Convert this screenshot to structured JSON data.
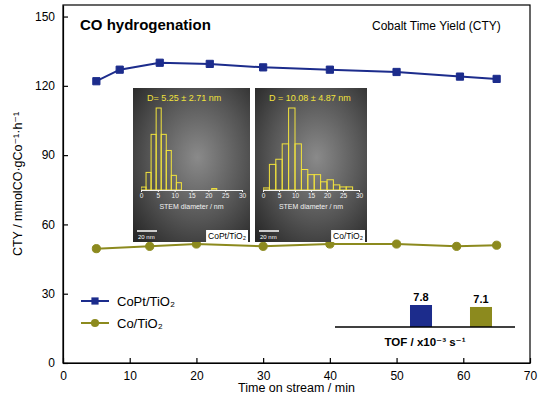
{
  "chart_data": [
    {
      "type": "line",
      "title": "CO hydrogenation",
      "subtitle": "Cobalt Time Yield (CTY)",
      "x_label": "Time on stream / min",
      "y_label": "CTY / mmolCO·gCo⁻¹·h⁻¹",
      "xlim": [
        0,
        70
      ],
      "xticks": [
        0,
        10,
        20,
        30,
        40,
        50,
        60,
        70
      ],
      "ylim": [
        0,
        155
      ],
      "yticks": [
        0,
        30,
        60,
        90,
        120,
        150
      ],
      "legend": "lower left",
      "series": [
        {
          "name": "CoPt/TiO₂",
          "color": "#1c2c8c",
          "marker": "square",
          "x": [
            5,
            8.5,
            14.5,
            22,
            30,
            40,
            50,
            59.5,
            65
          ],
          "values": [
            122,
            127,
            130,
            129.5,
            128,
            127,
            126,
            124,
            123
          ]
        },
        {
          "name": "Co/TiO₂",
          "color": "#8c8a1e",
          "marker": "circle",
          "x": [
            5,
            13,
            20,
            30,
            40,
            50,
            59,
            65
          ],
          "values": [
            49.5,
            50.5,
            51.5,
            50.5,
            51.5,
            51.5,
            50.5,
            51
          ]
        }
      ]
    },
    {
      "type": "histogram",
      "title": "D= 5.25 ± 2.71 nm",
      "x_label": "STEM diameter / nm",
      "annotations": [
        "CoPt/TiO₂",
        "20 nm"
      ],
      "color": "#f2e33c",
      "xlim": [
        0,
        30
      ],
      "xticks": [
        0,
        5,
        10,
        15,
        20,
        25,
        30
      ],
      "bins": [
        0,
        1.5,
        3,
        4.5,
        6,
        7.5,
        9,
        10.5,
        12,
        13.5,
        15,
        16.5,
        18,
        19.5,
        21,
        22.5
      ],
      "values": [
        2,
        12,
        38,
        56,
        38,
        27,
        10,
        5,
        0,
        0,
        0,
        0,
        0,
        0,
        1
      ]
    },
    {
      "type": "histogram",
      "title": "D = 10.08 ± 4.87 nm",
      "x_label": "STEM diameter / nm",
      "annotations": [
        "Co/TiO₂",
        "20 nm"
      ],
      "color": "#f2e33c",
      "xlim": [
        0,
        30
      ],
      "xticks": [
        0,
        5,
        10,
        15,
        20,
        25,
        30
      ],
      "bins": [
        0,
        2,
        4,
        6,
        8,
        10,
        12,
        14,
        16,
        18,
        20,
        22,
        24,
        26,
        28
      ],
      "values": [
        2,
        25,
        30,
        45,
        80,
        45,
        20,
        15,
        15,
        8,
        10,
        5,
        3,
        3
      ]
    },
    {
      "type": "bar",
      "x_label": "TOF / x10⁻³ s⁻¹",
      "categories": [
        null,
        null
      ],
      "values": [
        7.8,
        7.1
      ],
      "colors": [
        "#1c2c8c",
        "#8c8a1e"
      ],
      "data_labels": true,
      "tick_labels": false
    }
  ]
}
